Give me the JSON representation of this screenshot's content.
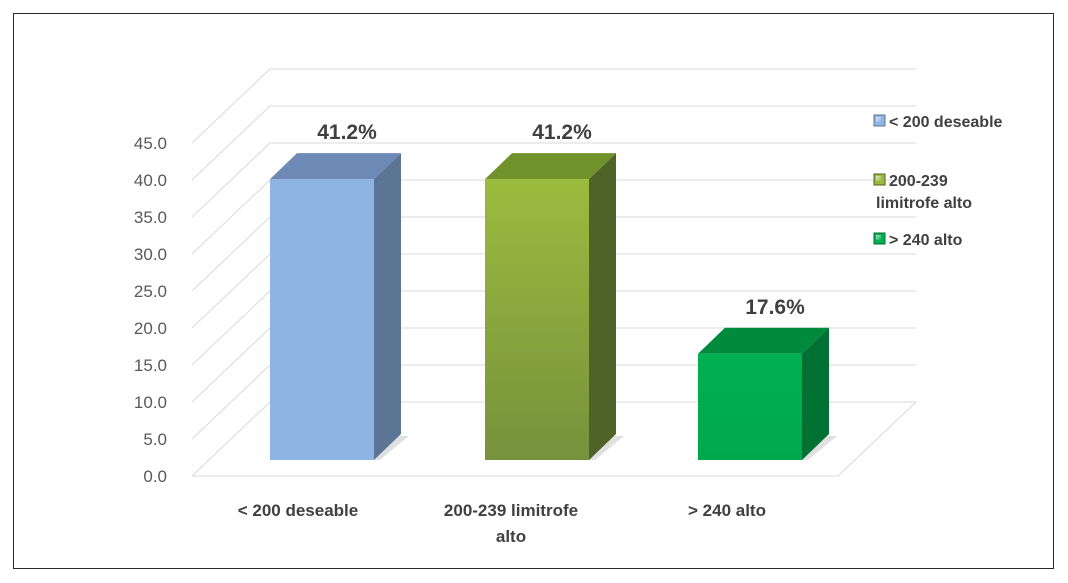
{
  "chart_data": {
    "type": "bar",
    "title": "",
    "xlabel": "",
    "ylabel": "",
    "categories": [
      "< 200 deseable",
      "200-239 limitrofe alto",
      "> 240 alto"
    ],
    "category_lines": [
      [
        "< 200 deseable"
      ],
      [
        "200-239 limitrofe",
        "alto"
      ],
      [
        "> 240 alto"
      ]
    ],
    "values": [
      41.2,
      41.2,
      17.6
    ],
    "data_labels": [
      "41.2%",
      "41.2%",
      "17.6%"
    ],
    "yticks": [
      0.0,
      5.0,
      10.0,
      15.0,
      20.0,
      25.0,
      30.0,
      35.0,
      40.0,
      45.0
    ],
    "ylim": [
      0,
      45
    ],
    "grid": true,
    "three_d": true,
    "legend": {
      "position": "right",
      "entries": [
        {
          "lines": [
            "< 200 deseable"
          ],
          "color": "#8eb4e3"
        },
        {
          "lines": [
            "200-239",
            "limitrofe alto"
          ],
          "color": "#9bbb3e"
        },
        {
          "lines": [
            "> 240 alto"
          ],
          "color": "#00b050"
        }
      ]
    },
    "colors": {
      "front": [
        "#8eb4e3",
        "#9bbb3e",
        "#00b050"
      ],
      "front_dark": [
        "#8eb4e3",
        "#76923c",
        "#00a84c"
      ],
      "side": [
        "#5d7595",
        "#4f6228",
        "#007033"
      ],
      "top": [
        "#6c8ab5",
        "#71922b",
        "#008a3e"
      ]
    }
  }
}
